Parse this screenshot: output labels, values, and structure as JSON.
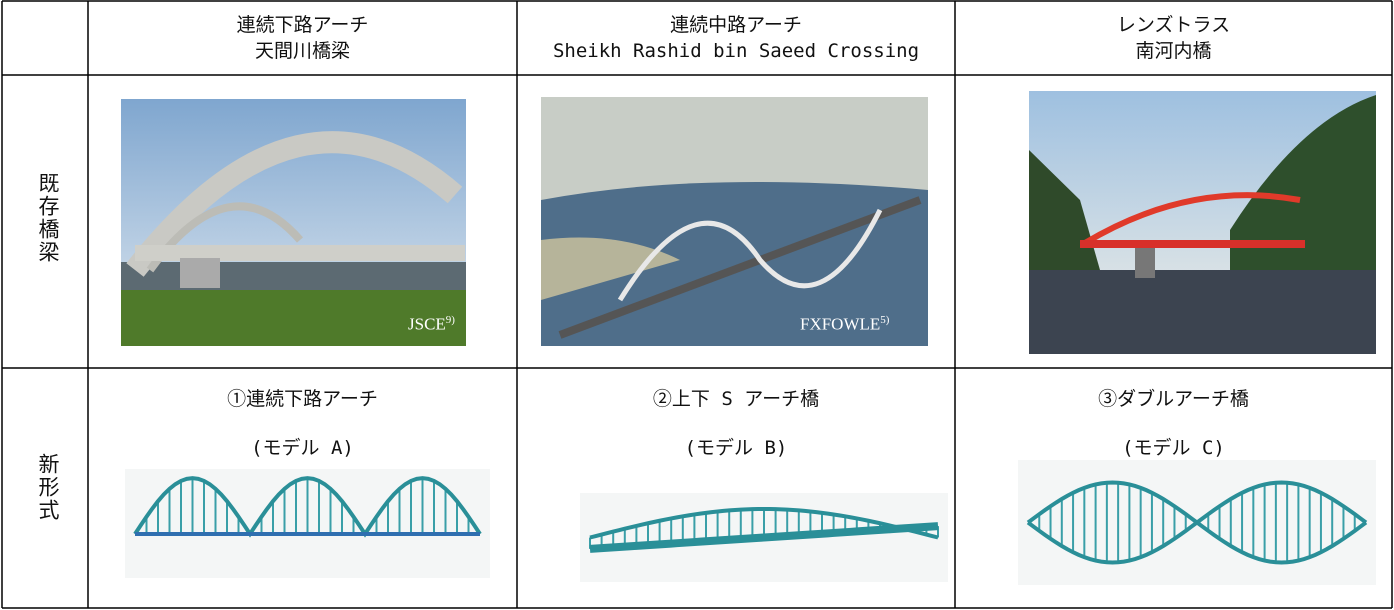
{
  "columns": [
    {
      "title": "連続下路アーチ",
      "subtitle": "天間川橋梁"
    },
    {
      "title": "連続中路アーチ",
      "subtitle": "Sheikh Rashid bin Saeed Crossing"
    },
    {
      "title": "レンズトラス",
      "subtitle": "南河内橋"
    }
  ],
  "existing": {
    "label": "既存橋梁",
    "photos": [
      {
        "credit": "JSCE",
        "note": "9)"
      },
      {
        "credit": "FXFOWLE",
        "note": "5)"
      }
    ]
  },
  "new": {
    "label": "新形式",
    "models": [
      {
        "name": "①連続下路アーチ",
        "model": "(モデル A)"
      },
      {
        "name": "②上下 S アーチ橋",
        "model": "(モデル B)"
      },
      {
        "name": "③ダブルアーチ橋",
        "model": "(モデル C)"
      }
    ]
  }
}
